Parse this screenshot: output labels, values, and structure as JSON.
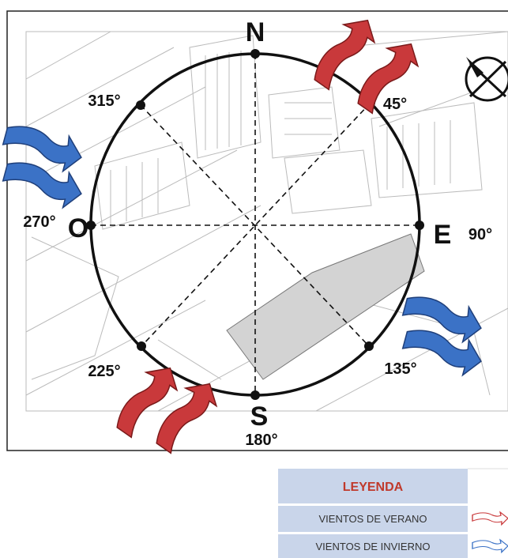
{
  "compass": {
    "north": "N",
    "south": "S",
    "east": "E",
    "west": "O"
  },
  "degrees": [
    "45°",
    "90°",
    "135°",
    "180°",
    "225°",
    "270°",
    "315°"
  ],
  "legend": {
    "title": "LEYENDA",
    "items": [
      "VIENTOS DE VERANO",
      "VIENTOS DE INVIERNO"
    ]
  }
}
